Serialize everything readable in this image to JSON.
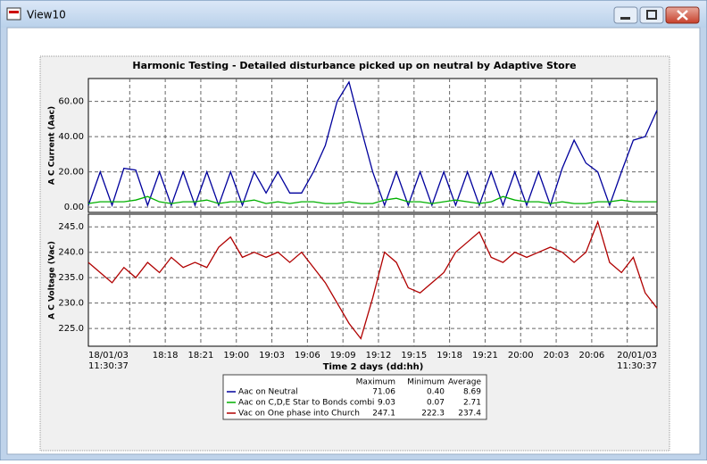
{
  "window": {
    "title": "View10"
  },
  "chart_data": {
    "type": "line",
    "title": "Harmonic Testing - Detailed disturbance picked up on neutral by Adaptive Store",
    "xlabel": "Time 2 days (dd:hh)",
    "xlim": [
      0,
      48
    ],
    "xticks": [
      {
        "value": 0,
        "label": [
          "18/01/03",
          "11:30:37"
        ]
      },
      {
        "value": 3.49,
        "label": null
      },
      {
        "value": 6.49,
        "label": "18:18"
      },
      {
        "value": 9.49,
        "label": "18:21"
      },
      {
        "value": 12.49,
        "label": "19:00"
      },
      {
        "value": 15.49,
        "label": "19:03"
      },
      {
        "value": 18.49,
        "label": "19:06"
      },
      {
        "value": 21.49,
        "label": "19:09"
      },
      {
        "value": 24.49,
        "label": "19:12"
      },
      {
        "value": 27.49,
        "label": "19:15"
      },
      {
        "value": 30.49,
        "label": "19:18"
      },
      {
        "value": 33.49,
        "label": "19:21"
      },
      {
        "value": 36.49,
        "label": "20:00"
      },
      {
        "value": 39.49,
        "label": "20:03"
      },
      {
        "value": 42.49,
        "label": "20:06"
      },
      {
        "value": 45.49,
        "label": null
      },
      {
        "value": 48,
        "label": [
          "20/01/03",
          "11:30:37"
        ]
      }
    ],
    "grid": true,
    "x": [
      0,
      1,
      2,
      3,
      4,
      5,
      6,
      7,
      8,
      9,
      10,
      11,
      12,
      13,
      14,
      15,
      16,
      17,
      18,
      19,
      20,
      21,
      22,
      23,
      24,
      25,
      26,
      27,
      28,
      29,
      30,
      31,
      32,
      33,
      34,
      35,
      36,
      37,
      38,
      39,
      40,
      41,
      42,
      43,
      44,
      45,
      46,
      47,
      48
    ],
    "panels": [
      {
        "ylabel": "A C Current (Aac)",
        "ylim": [
          -3,
          73
        ],
        "yticks": [
          {
            "value": 0,
            "label": "0.00"
          },
          {
            "value": 20,
            "label": "20.00"
          },
          {
            "value": 40,
            "label": "40.00"
          },
          {
            "value": 60,
            "label": "60.00"
          }
        ],
        "series": [
          {
            "name": "Aac on Neutral",
            "color": "#00009c",
            "values": [
              1,
              20,
              1,
              22,
              21,
              1,
              20,
              1,
              20,
              1,
              20,
              1,
              20,
              1,
              20,
              8,
              20,
              8,
              8,
              20,
              35,
              60,
              71,
              45,
              20,
              1,
              20,
              1,
              20,
              1,
              20,
              1,
              20,
              1,
              20,
              1,
              20,
              1,
              20,
              1,
              22,
              38,
              25,
              20,
              1,
              20,
              38,
              40,
              55
            ]
          },
          {
            "name": "Aac on C,D,E Star to Bonds combi",
            "color": "#00b000",
            "values": [
              2,
              3,
              3,
              3,
              4,
              6,
              3,
              2,
              3,
              3,
              4,
              2,
              3,
              3,
              4,
              2,
              3,
              2,
              3,
              3,
              2,
              2,
              3,
              2,
              2,
              4,
              5,
              3,
              3,
              2,
              3,
              4,
              3,
              2,
              3,
              6,
              4,
              3,
              3,
              2,
              3,
              2,
              2,
              3,
              3,
              4,
              3,
              3,
              3
            ]
          }
        ]
      },
      {
        "ylabel": "A C Voltage (Vac)",
        "ylim": [
          221.5,
          247.5
        ],
        "yticks": [
          {
            "value": 225,
            "label": "225.0"
          },
          {
            "value": 230,
            "label": "230.0"
          },
          {
            "value": 235,
            "label": "235.0"
          },
          {
            "value": 240,
            "label": "240.0"
          },
          {
            "value": 245,
            "label": "245.0"
          }
        ],
        "series": [
          {
            "name": "Vac on One phase into Church",
            "color": "#b00000",
            "values": [
              238,
              236,
              234,
              237,
              235,
              238,
              236,
              239,
              237,
              238,
              237,
              241,
              243,
              239,
              240,
              239,
              240,
              238,
              240,
              237,
              234,
              230,
              226,
              223,
              231,
              240,
              238,
              233,
              232,
              234,
              236,
              240,
              242,
              244,
              239,
              238,
              240,
              239,
              240,
              241,
              240,
              238,
              240,
              246,
              238,
              236,
              239,
              232,
              229
            ]
          }
        ]
      }
    ]
  },
  "stats": {
    "headers": [
      "Maximum",
      "Minimum",
      "Average"
    ],
    "rows": [
      [
        "71.06",
        "0.40",
        "8.69"
      ],
      [
        "9.03",
        "0.07",
        "2.71"
      ],
      [
        "247.1",
        "222.3",
        "237.4"
      ]
    ]
  }
}
